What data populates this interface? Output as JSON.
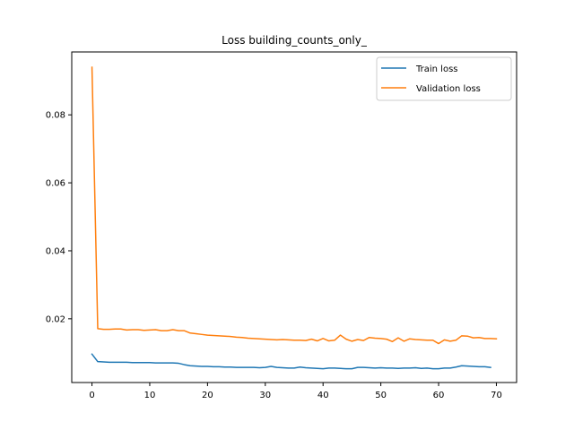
{
  "chart_data": {
    "type": "line",
    "title": "Loss building_counts_only_",
    "xlabel": "",
    "ylabel": "",
    "xlim": [
      -3.5,
      73.5
    ],
    "ylim": [
      0.00125,
      0.0985
    ],
    "xticks": [
      0,
      10,
      20,
      30,
      40,
      50,
      60,
      70
    ],
    "yticks": [
      0.02,
      0.04,
      0.06,
      0.08
    ],
    "ytick_labels": [
      "0.02",
      "0.04",
      "0.06",
      "0.08"
    ],
    "grid": false,
    "legend_position": "top-right",
    "series": [
      {
        "name": "Train loss",
        "color": "#1f77b4",
        "x": [
          0,
          1,
          2,
          3,
          4,
          5,
          6,
          7,
          8,
          9,
          10,
          11,
          12,
          13,
          14,
          15,
          16,
          17,
          18,
          19,
          20,
          21,
          22,
          23,
          24,
          25,
          26,
          27,
          28,
          29,
          30,
          31,
          32,
          33,
          34,
          35,
          36,
          37,
          38,
          39,
          40,
          41,
          42,
          43,
          44,
          45,
          46,
          47,
          48,
          49,
          50,
          51,
          52,
          53,
          54,
          55,
          56,
          57,
          58,
          59,
          60,
          61,
          62,
          63,
          64,
          65,
          66,
          67,
          68,
          69
        ],
        "values": [
          0.0096,
          0.0074,
          0.0073,
          0.0072,
          0.0072,
          0.0072,
          0.0072,
          0.0071,
          0.0071,
          0.0071,
          0.0071,
          0.007,
          0.007,
          0.007,
          0.007,
          0.0069,
          0.0065,
          0.0062,
          0.0061,
          0.006,
          0.006,
          0.0059,
          0.0059,
          0.0058,
          0.0058,
          0.0057,
          0.0057,
          0.0057,
          0.0057,
          0.0056,
          0.0057,
          0.006,
          0.0057,
          0.0056,
          0.0055,
          0.0055,
          0.0058,
          0.0056,
          0.0055,
          0.0054,
          0.0053,
          0.0055,
          0.0055,
          0.0054,
          0.0053,
          0.0053,
          0.0057,
          0.0057,
          0.0056,
          0.0055,
          0.0056,
          0.0055,
          0.0055,
          0.0054,
          0.0055,
          0.0055,
          0.0056,
          0.0054,
          0.0055,
          0.0053,
          0.0053,
          0.0055,
          0.0055,
          0.0058,
          0.0062,
          0.0061,
          0.006,
          0.0059,
          0.0059,
          0.0057
        ]
      },
      {
        "name": "Validation loss",
        "color": "#ff7f0e",
        "x": [
          0,
          1,
          2,
          3,
          4,
          5,
          6,
          7,
          8,
          9,
          10,
          11,
          12,
          13,
          14,
          15,
          16,
          17,
          18,
          19,
          20,
          21,
          22,
          23,
          24,
          25,
          26,
          27,
          28,
          29,
          30,
          31,
          32,
          33,
          34,
          35,
          36,
          37,
          38,
          39,
          40,
          41,
          42,
          43,
          44,
          45,
          46,
          47,
          48,
          49,
          50,
          51,
          52,
          53,
          54,
          55,
          56,
          57,
          58,
          59,
          60,
          61,
          62,
          63,
          64,
          65,
          66,
          67,
          68,
          69,
          70
        ],
        "values": [
          0.094,
          0.0171,
          0.0169,
          0.0169,
          0.017,
          0.017,
          0.0167,
          0.0168,
          0.0168,
          0.0166,
          0.0167,
          0.0168,
          0.0165,
          0.0165,
          0.0168,
          0.0165,
          0.0165,
          0.0158,
          0.0156,
          0.0154,
          0.0152,
          0.0151,
          0.015,
          0.0149,
          0.0148,
          0.0146,
          0.0145,
          0.0143,
          0.0142,
          0.0141,
          0.014,
          0.0139,
          0.0138,
          0.0139,
          0.0138,
          0.0137,
          0.0137,
          0.0136,
          0.014,
          0.0135,
          0.0142,
          0.0135,
          0.0137,
          0.0152,
          0.014,
          0.0134,
          0.0139,
          0.0136,
          0.0145,
          0.0143,
          0.0142,
          0.014,
          0.0133,
          0.0144,
          0.0134,
          0.0141,
          0.0139,
          0.0138,
          0.0137,
          0.0137,
          0.0127,
          0.0138,
          0.0134,
          0.0137,
          0.015,
          0.0149,
          0.0144,
          0.0145,
          0.0142,
          0.0142,
          0.0141
        ]
      }
    ]
  }
}
